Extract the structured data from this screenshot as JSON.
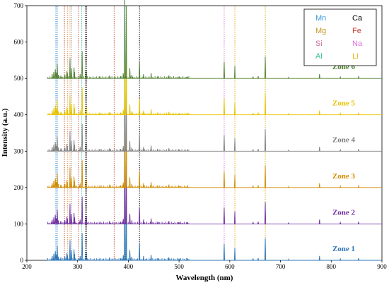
{
  "chart_data": {
    "type": "line",
    "title": "",
    "xlabel": "Wavelength (nm)",
    "ylabel": "Intensity (a.u.)",
    "xlim": [
      200,
      900
    ],
    "ylim": [
      0,
      700
    ],
    "xticks": [
      200,
      300,
      400,
      500,
      600,
      700,
      800,
      900
    ],
    "yticks": [
      0,
      100,
      200,
      300,
      400,
      500,
      600,
      700
    ],
    "grid": false,
    "legend_position": "top-right",
    "series": [
      {
        "name": "Zone 1",
        "offset": 0,
        "color": "#2e75b6"
      },
      {
        "name": "Zone 2",
        "offset": 100,
        "color": "#7030a0"
      },
      {
        "name": "Zone 3",
        "offset": 200,
        "color": "#d08c00"
      },
      {
        "name": "Zone 4",
        "offset": 300,
        "color": "#808080"
      },
      {
        "name": "Zone 5",
        "offset": 400,
        "color": "#e6c300"
      },
      {
        "name": "Zone 6",
        "offset": 500,
        "color": "#548235"
      }
    ],
    "peaks": [
      [
        250,
        12
      ],
      [
        253,
        18
      ],
      [
        256,
        25
      ],
      [
        258,
        15
      ],
      [
        260,
        40
      ],
      [
        262,
        10
      ],
      [
        267,
        8
      ],
      [
        275,
        10
      ],
      [
        279,
        20
      ],
      [
        280,
        14
      ],
      [
        285,
        55
      ],
      [
        288,
        28
      ],
      [
        293,
        30
      ],
      [
        294,
        18
      ],
      [
        305,
        12
      ],
      [
        309,
        75
      ],
      [
        317,
        22
      ],
      [
        344,
        6
      ],
      [
        363,
        8
      ],
      [
        385,
        6
      ],
      [
        390,
        14
      ],
      [
        393,
        240
      ],
      [
        396,
        200
      ],
      [
        403,
        28
      ],
      [
        407,
        10
      ],
      [
        422,
        45
      ],
      [
        430,
        12
      ],
      [
        445,
        15
      ],
      [
        458,
        6
      ],
      [
        480,
        8
      ],
      [
        500,
        5
      ],
      [
        517,
        5
      ],
      [
        589,
        45
      ],
      [
        610,
        35
      ],
      [
        646,
        5
      ],
      [
        656,
        6
      ],
      [
        670,
        60
      ],
      [
        716,
        3
      ],
      [
        777,
        12
      ],
      [
        818,
        4
      ],
      [
        854,
        6
      ]
    ],
    "element_lines": [
      {
        "element": "Mn",
        "color": "#5aa0dc",
        "wavelengths": [
          257,
          259,
          260
        ]
      },
      {
        "element": "Ca",
        "color": "#000000",
        "wavelengths": [
          315,
          318,
          393,
          396,
          422
        ]
      },
      {
        "element": "Mg",
        "color": "#d6a23c",
        "wavelengths": [
          280,
          285
        ]
      },
      {
        "element": "Fe",
        "color": "#c0392b",
        "wavelengths": [
          274,
          302,
          372
        ]
      },
      {
        "element": "Si",
        "color": "#b56bb0",
        "wavelengths": [
          288
        ]
      },
      {
        "element": "Na",
        "color": "#e070e0",
        "wavelengths": [
          589
        ]
      },
      {
        "element": "Al",
        "color": "#40c0a0",
        "wavelengths": [
          308,
          394,
          396
        ]
      },
      {
        "element": "Li",
        "color": "#e0a000",
        "wavelengths": [
          610,
          670
        ]
      }
    ],
    "legend": [
      {
        "element": "Mn",
        "color": "#3c9bd6"
      },
      {
        "element": "Ca",
        "color": "#000000"
      },
      {
        "element": "Mg",
        "color": "#c49a2a"
      },
      {
        "element": "Fe",
        "color": "#c0392b"
      },
      {
        "element": "Si",
        "color": "#c9739e"
      },
      {
        "element": "Na",
        "color": "#e070e0"
      },
      {
        "element": "Al",
        "color": "#3cbf9a"
      },
      {
        "element": "Li",
        "color": "#e6ac00"
      }
    ]
  }
}
